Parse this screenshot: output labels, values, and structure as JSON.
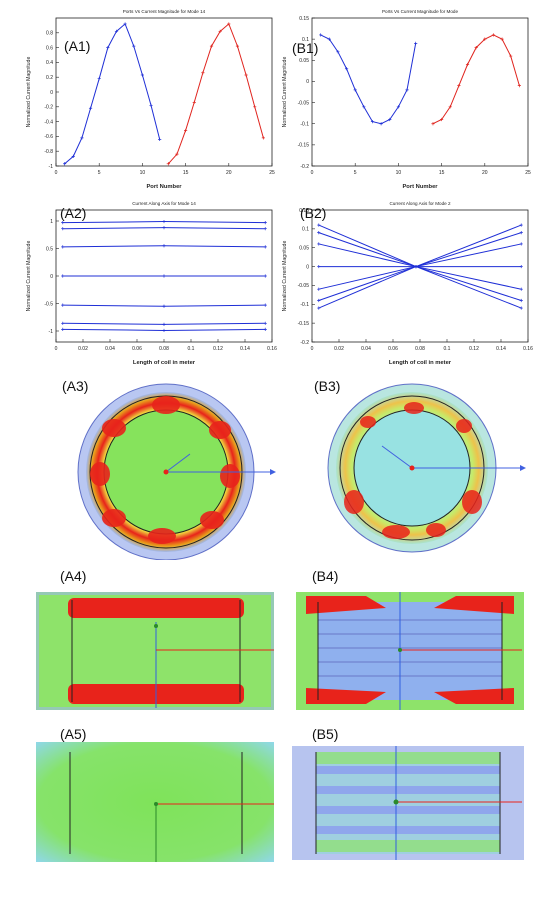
{
  "panel_labels": {
    "a1": "(A1)",
    "b1": "(B1)",
    "a2": "(A2)",
    "b2": "(B2)",
    "a3": "(A3)",
    "b3": "(B3)",
    "a4": "(A4)",
    "b4": "(B4)",
    "a5": "(A5)",
    "b5": "(B5)"
  },
  "colors": {
    "blue_series": "#1f2fd6",
    "red_series": "#e0241e",
    "field_red": "#e8231b",
    "field_green": "#7fe35a",
    "field_cyan": "#8fe0e6",
    "field_blue": "#7c8fe8"
  },
  "chart_data": [
    {
      "id": "A1",
      "type": "line",
      "title": "Ports Vs Current Magnitude for Mode 14",
      "xlabel": "Port Number",
      "ylabel": "Normalized Current Magnitude",
      "xlim": [
        0,
        25
      ],
      "ylim": [
        -1,
        1
      ],
      "xticks": [
        0,
        5,
        10,
        15,
        20,
        25
      ],
      "xtick_labels": [
        "0",
        "5",
        "10",
        "15",
        "20",
        "25"
      ],
      "yticks": [
        -1,
        -0.8,
        -0.6,
        -0.4,
        -0.2,
        0,
        0.2,
        0.4,
        0.6,
        0.8
      ],
      "ytick_labels": [
        "-1",
        "-0.8",
        "-0.6",
        "-0.4",
        "-0.2",
        "0",
        "0.2",
        "0.4",
        "0.6",
        "0.8"
      ],
      "grid": false,
      "series": [
        {
          "color": "blue",
          "x": [
            1,
            2,
            3,
            4,
            5,
            6,
            7,
            8,
            9,
            10,
            11,
            12
          ],
          "y": [
            -0.97,
            -0.87,
            -0.62,
            -0.22,
            0.18,
            0.6,
            0.82,
            0.92,
            0.62,
            0.23,
            -0.18,
            -0.64
          ]
        },
        {
          "color": "red",
          "x": [
            13,
            14,
            15,
            16,
            17,
            18,
            19,
            20,
            21,
            22,
            23,
            24
          ],
          "y": [
            -0.97,
            -0.84,
            -0.52,
            -0.14,
            0.26,
            0.62,
            0.82,
            0.92,
            0.62,
            0.23,
            -0.2,
            -0.62
          ]
        }
      ]
    },
    {
      "id": "B1",
      "type": "line",
      "title": "Ports Vs Current Magnitude for Mode",
      "xlabel": "Port Number",
      "ylabel": "Normalized Current Magnitude",
      "xlim": [
        0,
        25
      ],
      "ylim": [
        -0.2,
        0.15
      ],
      "xticks": [
        0,
        5,
        10,
        15,
        20,
        25
      ],
      "xtick_labels": [
        "0",
        "5",
        "10",
        "15",
        "20",
        "25"
      ],
      "yticks": [
        -0.2,
        -0.15,
        -0.1,
        -0.05,
        0,
        0.05,
        0.1,
        0.15
      ],
      "ytick_labels": [
        "-0.2",
        "-0.15",
        "-0.1",
        "-0.05",
        "0",
        "0.05",
        "0.1",
        "0.15"
      ],
      "grid": false,
      "series": [
        {
          "color": "blue",
          "x": [
            1,
            2,
            3,
            4,
            5,
            6,
            7,
            8,
            9,
            10,
            11,
            12
          ],
          "y": [
            0.11,
            0.1,
            0.07,
            0.03,
            -0.02,
            -0.06,
            -0.095,
            -0.1,
            -0.09,
            -0.06,
            -0.02,
            0.09
          ]
        },
        {
          "color": "red",
          "x": [
            14,
            15,
            16,
            17,
            18,
            19,
            20,
            21,
            22,
            23,
            24
          ],
          "y": [
            -0.1,
            -0.09,
            -0.06,
            -0.01,
            0.04,
            0.08,
            0.1,
            0.11,
            0.1,
            0.06,
            -0.01
          ]
        }
      ]
    },
    {
      "id": "A2",
      "type": "line",
      "title": "Current Along Axis for Mode 14",
      "xlabel": "Length of coil in meter",
      "ylabel": "Normalized Current Magnitude",
      "xlim": [
        0,
        0.16
      ],
      "ylim": [
        -1.2,
        1.2
      ],
      "xticks": [
        0,
        0.02,
        0.04,
        0.06,
        0.08,
        0.1,
        0.12,
        0.14,
        0.16
      ],
      "xtick_labels": [
        "0",
        "0.02",
        "0.04",
        "0.06",
        "0.08",
        "0.1",
        "0.12",
        "0.14",
        "0.16"
      ],
      "yticks": [
        -1,
        -0.5,
        0,
        0.5,
        1
      ],
      "ytick_labels": [
        "-1",
        "-0.5",
        "0",
        "0.5",
        "1"
      ],
      "grid": false,
      "series": [
        {
          "color": "blue",
          "x": [
            0.005,
            0.08,
            0.155
          ],
          "y": [
            0.97,
            0.99,
            0.97
          ]
        },
        {
          "color": "blue",
          "x": [
            0.005,
            0.08,
            0.155
          ],
          "y": [
            0.86,
            0.88,
            0.86
          ]
        },
        {
          "color": "blue",
          "x": [
            0.005,
            0.08,
            0.155
          ],
          "y": [
            0.53,
            0.55,
            0.53
          ]
        },
        {
          "color": "blue",
          "x": [
            0.005,
            0.08,
            0.155
          ],
          "y": [
            0.0,
            0.0,
            0.0
          ]
        },
        {
          "color": "blue",
          "x": [
            0.005,
            0.08,
            0.155
          ],
          "y": [
            -0.53,
            -0.55,
            -0.53
          ]
        },
        {
          "color": "blue",
          "x": [
            0.005,
            0.08,
            0.155
          ],
          "y": [
            -0.86,
            -0.88,
            -0.86
          ]
        },
        {
          "color": "blue",
          "x": [
            0.005,
            0.08,
            0.155
          ],
          "y": [
            -0.97,
            -0.99,
            -0.97
          ]
        }
      ]
    },
    {
      "id": "B2",
      "type": "line",
      "title": "Current Along Axis for Mode 2",
      "xlabel": "Length of coil in meter",
      "ylabel": "Normalized Current Magnitude",
      "xlim": [
        0,
        0.16
      ],
      "ylim": [
        -0.2,
        0.15
      ],
      "xticks": [
        0,
        0.02,
        0.04,
        0.06,
        0.08,
        0.1,
        0.12,
        0.14,
        0.16
      ],
      "xtick_labels": [
        "0",
        "0.02",
        "0.04",
        "0.06",
        "0.08",
        "0.1",
        "0.12",
        "0.14",
        "0.16"
      ],
      "yticks": [
        -0.2,
        -0.15,
        -0.1,
        -0.05,
        0,
        0.05,
        0.1,
        0.15
      ],
      "ytick_labels": [
        "-0.2",
        "-0.15",
        "-0.1",
        "-0.05",
        "0",
        "0.05",
        "0.1",
        "0.15"
      ],
      "grid": false,
      "series": [
        {
          "color": "blue",
          "x": [
            0.005,
            0.077,
            0.155
          ],
          "y": [
            0.11,
            0.0,
            -0.11
          ]
        },
        {
          "color": "blue",
          "x": [
            0.005,
            0.077,
            0.155
          ],
          "y": [
            0.09,
            0.0,
            -0.09
          ]
        },
        {
          "color": "blue",
          "x": [
            0.005,
            0.077,
            0.155
          ],
          "y": [
            0.06,
            0.0,
            -0.06
          ]
        },
        {
          "color": "blue",
          "x": [
            0.005,
            0.077,
            0.155
          ],
          "y": [
            0.0,
            0.0,
            0.0
          ]
        },
        {
          "color": "blue",
          "x": [
            0.005,
            0.077,
            0.155
          ],
          "y": [
            -0.06,
            0.0,
            0.06
          ]
        },
        {
          "color": "blue",
          "x": [
            0.005,
            0.077,
            0.155
          ],
          "y": [
            -0.09,
            0.0,
            0.09
          ]
        },
        {
          "color": "blue",
          "x": [
            0.005,
            0.077,
            0.155
          ],
          "y": [
            -0.11,
            0.0,
            0.11
          ]
        }
      ]
    }
  ]
}
